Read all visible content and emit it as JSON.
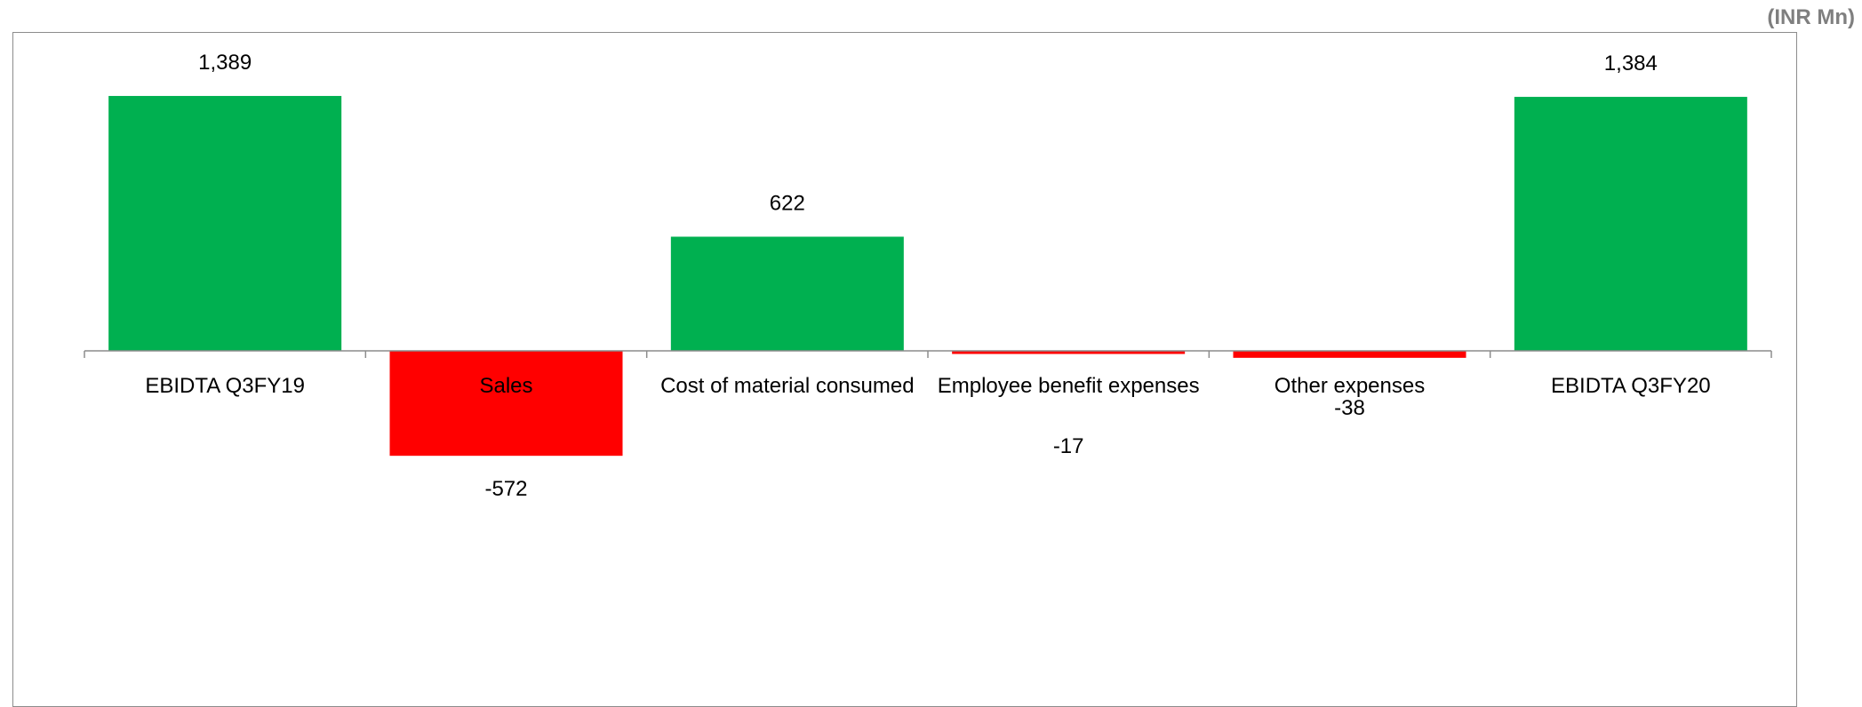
{
  "unit_label": "(INR Mn)",
  "chart_data": {
    "type": "bar",
    "categories": [
      "EBIDTA Q3FY19",
      "Sales",
      "Cost of material consumed",
      "Employee benefit expenses",
      "Other expenses",
      "EBIDTA Q3FY20"
    ],
    "values": [
      1389,
      -572,
      622,
      -17,
      -38,
      1384
    ],
    "data_labels": [
      "1,389",
      "-572",
      "622",
      "-17",
      "-38",
      "1,384"
    ],
    "colors": {
      "positive": "#00b050",
      "negative": "#ff0000"
    },
    "title": "",
    "xlabel": "",
    "ylabel": "",
    "grid": false
  }
}
